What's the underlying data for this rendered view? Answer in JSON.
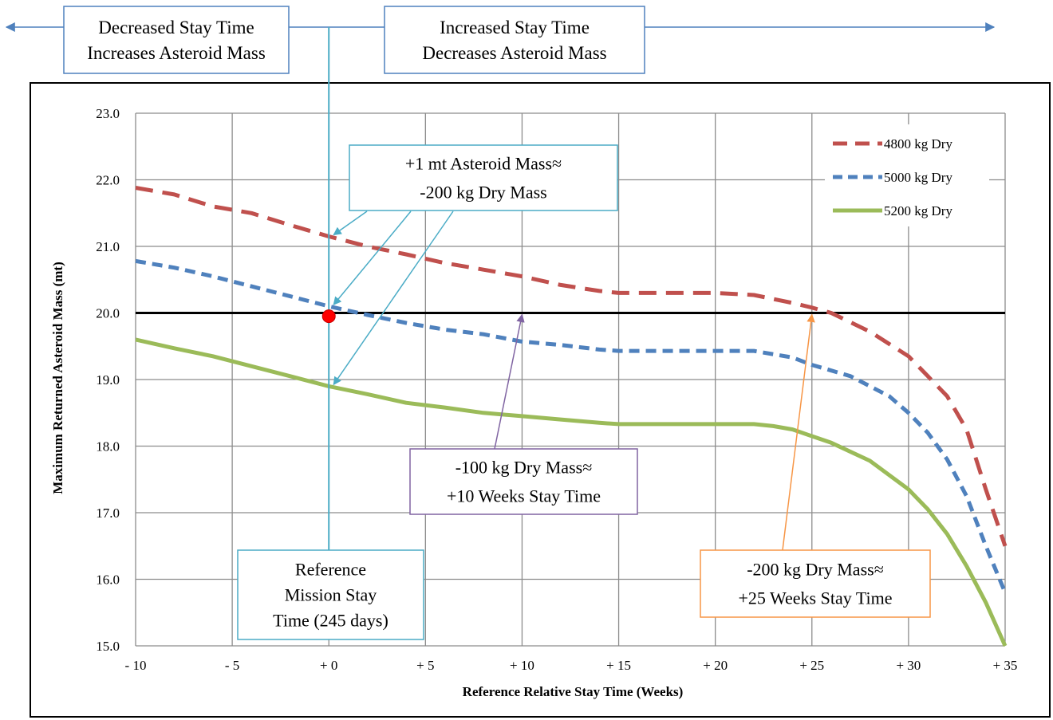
{
  "header": {
    "left_note": [
      "Decreased Stay Time",
      "Increases Asteroid Mass"
    ],
    "right_note": [
      "Increased Stay Time",
      "Decreases Asteroid Mass"
    ]
  },
  "chart_data": {
    "type": "line",
    "title": "",
    "xlabel": "Reference  Relative Stay Time (Weeks)",
    "ylabel": "Maximum Returned Asteroid Mass (mt)",
    "xlim": [
      -10,
      35
    ],
    "ylim": [
      15.0,
      23.0
    ],
    "x_ticks": [
      -10,
      -5,
      0,
      5,
      10,
      15,
      20,
      25,
      30,
      35
    ],
    "x_tick_labels": [
      "- 10",
      "- 5",
      "+ 0",
      "+ 5",
      "+ 10",
      "+ 15",
      "+ 20",
      "+ 25",
      "+ 30",
      "+ 35"
    ],
    "y_ticks": [
      15,
      16,
      17,
      18,
      19,
      20,
      21,
      22,
      23
    ],
    "y_tick_labels": [
      "15.0",
      "16.0",
      "17.0",
      "18.0",
      "19.0",
      "20.0",
      "21.0",
      "22.0",
      "23.0"
    ],
    "grid": true,
    "legend_position": "top-right",
    "reference_line": {
      "y": 20.0,
      "color": "#000000"
    },
    "reference_point": {
      "x": 0,
      "y": 19.95,
      "color": "#ff0000"
    },
    "series": [
      {
        "name": "4800 kg Dry",
        "color": "#c0504d",
        "dash": "dashed",
        "points": [
          [
            -10,
            21.88
          ],
          [
            -8,
            21.78
          ],
          [
            -6,
            21.6
          ],
          [
            -4,
            21.5
          ],
          [
            -2,
            21.32
          ],
          [
            0,
            21.15
          ],
          [
            2,
            21.0
          ],
          [
            4,
            20.88
          ],
          [
            6,
            20.75
          ],
          [
            8,
            20.65
          ],
          [
            10,
            20.55
          ],
          [
            12,
            20.42
          ],
          [
            14,
            20.33
          ],
          [
            15,
            20.3
          ],
          [
            17,
            20.3
          ],
          [
            20,
            20.3
          ],
          [
            22,
            20.27
          ],
          [
            24,
            20.15
          ],
          [
            25,
            20.08
          ],
          [
            26,
            20.0
          ],
          [
            28,
            19.72
          ],
          [
            30,
            19.35
          ],
          [
            31,
            19.05
          ],
          [
            32,
            18.75
          ],
          [
            33,
            18.25
          ],
          [
            34,
            17.35
          ],
          [
            35,
            16.5
          ]
        ]
      },
      {
        "name": "5000 kg Dry",
        "color": "#4f81bd",
        "dash": "dashed",
        "points": [
          [
            -10,
            20.78
          ],
          [
            -8,
            20.68
          ],
          [
            -6,
            20.55
          ],
          [
            -4,
            20.4
          ],
          [
            -2,
            20.25
          ],
          [
            0,
            20.1
          ],
          [
            2,
            19.97
          ],
          [
            4,
            19.85
          ],
          [
            6,
            19.75
          ],
          [
            8,
            19.68
          ],
          [
            10,
            19.57
          ],
          [
            12,
            19.52
          ],
          [
            14,
            19.45
          ],
          [
            15,
            19.43
          ],
          [
            17,
            19.43
          ],
          [
            20,
            19.43
          ],
          [
            22,
            19.43
          ],
          [
            24,
            19.33
          ],
          [
            25,
            19.22
          ],
          [
            27,
            19.05
          ],
          [
            29,
            18.75
          ],
          [
            30,
            18.5
          ],
          [
            31,
            18.2
          ],
          [
            32,
            17.8
          ],
          [
            33,
            17.25
          ],
          [
            34,
            16.5
          ],
          [
            35,
            15.8
          ]
        ]
      },
      {
        "name": "5200 kg Dry",
        "color": "#9bbb59",
        "dash": "solid",
        "points": [
          [
            -10,
            19.6
          ],
          [
            -8,
            19.47
          ],
          [
            -6,
            19.35
          ],
          [
            -4,
            19.2
          ],
          [
            -2,
            19.05
          ],
          [
            0,
            18.9
          ],
          [
            2,
            18.78
          ],
          [
            4,
            18.65
          ],
          [
            6,
            18.58
          ],
          [
            8,
            18.5
          ],
          [
            10,
            18.45
          ],
          [
            12,
            18.4
          ],
          [
            14,
            18.35
          ],
          [
            15,
            18.33
          ],
          [
            17,
            18.33
          ],
          [
            20,
            18.33
          ],
          [
            22,
            18.33
          ],
          [
            23,
            18.3
          ],
          [
            24,
            18.25
          ],
          [
            25,
            18.15
          ],
          [
            26,
            18.05
          ],
          [
            28,
            17.78
          ],
          [
            30,
            17.35
          ],
          [
            31,
            17.05
          ],
          [
            32,
            16.68
          ],
          [
            33,
            16.2
          ],
          [
            34,
            15.65
          ],
          [
            35,
            15.0
          ]
        ]
      }
    ],
    "annotations": [
      {
        "id": "asteroid-mass-note",
        "lines": [
          "+1 mt Asteroid Mass≈",
          "-200 kg Dry Mass"
        ],
        "color": "#4bacc6",
        "arrow_targets": [
          [
            0,
            21.15
          ],
          [
            0,
            20.1
          ],
          [
            0,
            18.9
          ]
        ]
      },
      {
        "id": "reference-mission-note",
        "lines": [
          "Reference",
          "Mission Stay",
          "Time (245 days)"
        ],
        "color": "#4bacc6",
        "vertical_line_x": 0
      },
      {
        "id": "minus-100-note",
        "lines": [
          "-100 kg Dry Mass≈",
          "+10 Weeks Stay Time"
        ],
        "color": "#8064a2",
        "arrow_target": [
          10,
          20.0
        ]
      },
      {
        "id": "minus-200-note",
        "lines": [
          "-200 kg Dry Mass≈",
          "+25 Weeks Stay Time"
        ],
        "color": "#f79646",
        "arrow_target": [
          25,
          20.0
        ]
      }
    ]
  }
}
